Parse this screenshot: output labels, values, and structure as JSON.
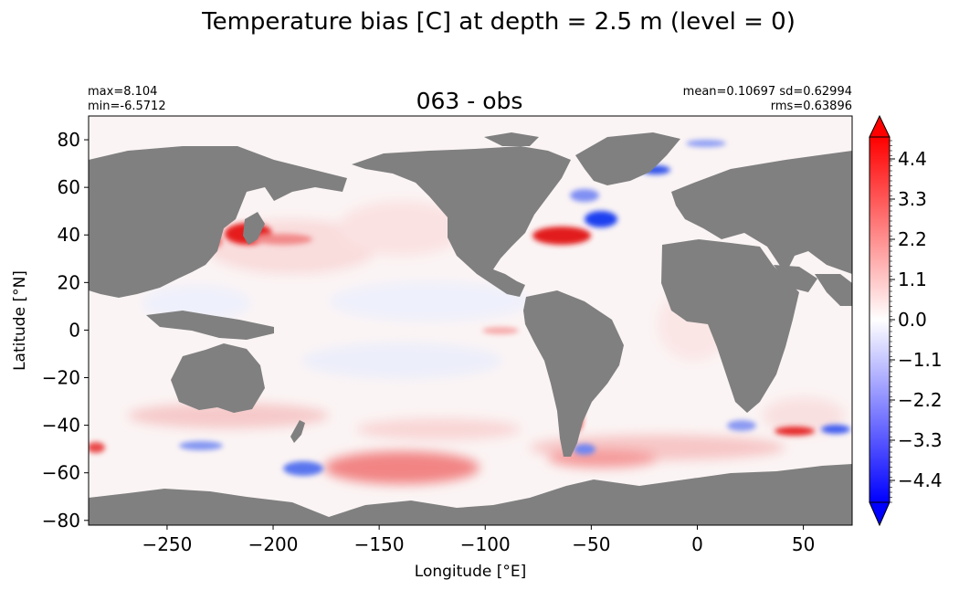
{
  "figure": {
    "suptitle": "Temperature bias [C] at depth = 2.5 m (level = 0)",
    "title": "063 - obs",
    "stats_left": [
      "max=8.104",
      "min=-6.5712"
    ],
    "stats_right": [
      "mean=0.10697 sd=0.62994",
      "rms=0.63896"
    ]
  },
  "axes": {
    "xlabel": "Longitude [°E]",
    "ylabel": "Latitude [°N]",
    "xlim": [
      -287,
      73
    ],
    "ylim": [
      -82,
      90
    ],
    "xticks": [
      -250,
      -200,
      -150,
      -100,
      -50,
      0,
      50
    ],
    "xtick_labels": [
      "−250",
      "−200",
      "−150",
      "−100",
      "−50",
      "0",
      "50"
    ],
    "yticks": [
      80,
      60,
      40,
      20,
      0,
      -20,
      -40,
      -60,
      -80
    ],
    "ytick_labels": [
      "80",
      "60",
      "40",
      "20",
      "0",
      "−20",
      "−40",
      "−60",
      "−80"
    ]
  },
  "colorbar": {
    "range": [
      -5.0,
      5.0
    ],
    "colormap": "bwr",
    "extend": "both",
    "ticks": [
      4.4,
      3.3,
      2.2,
      1.1,
      0.0,
      -1.1,
      -2.2,
      -3.3,
      -4.4
    ],
    "tick_labels": [
      "4.4",
      "3.3",
      "2.2",
      "1.1",
      "0.0",
      "−1.1",
      "−2.2",
      "−3.3",
      "−4.4"
    ]
  },
  "colors": {
    "land": "#808080",
    "warm": "#ff0000",
    "cold": "#0000ff",
    "neutral": "#ffffff"
  }
}
